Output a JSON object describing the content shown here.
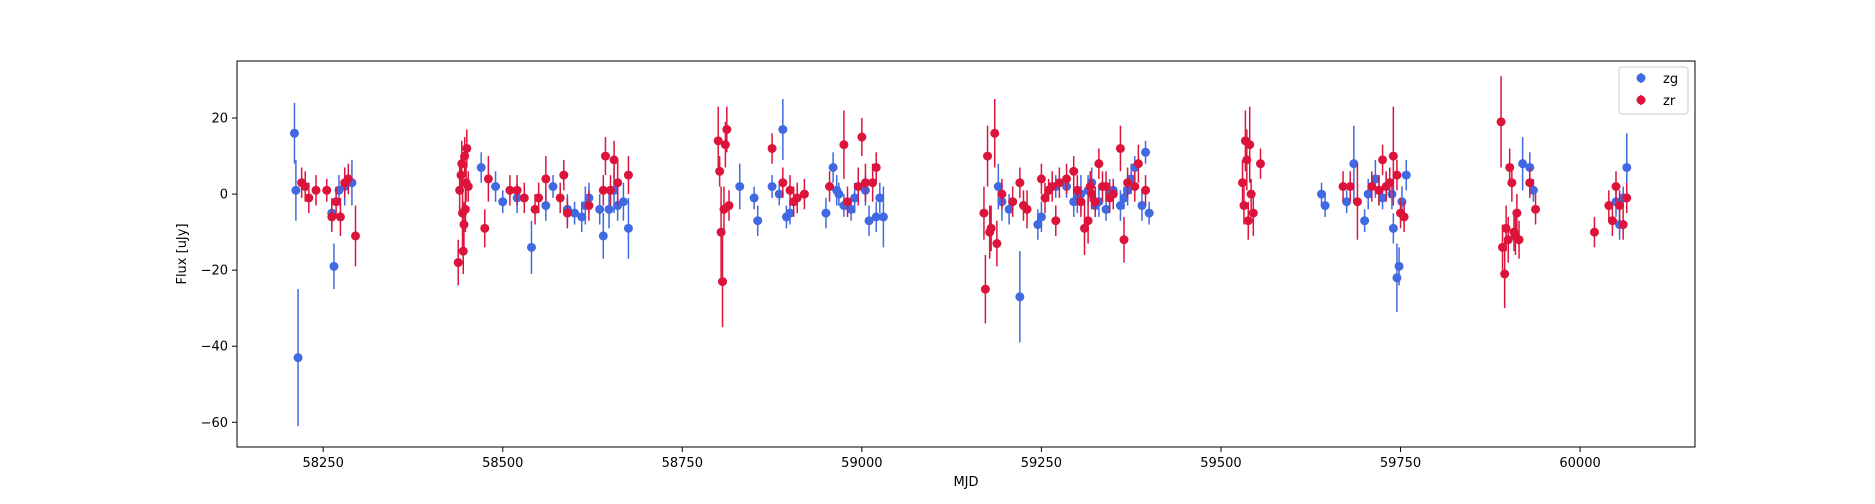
{
  "chart_data": {
    "type": "scatter",
    "title": "",
    "xlabel": "MJD",
    "ylabel": "Flux [uJy]",
    "xlim": [
      58130,
      60160
    ],
    "ylim": [
      -66.5,
      35
    ],
    "xticks": [
      58250,
      58500,
      58750,
      59000,
      59250,
      59500,
      59750,
      60000
    ],
    "yticks": [
      -60,
      -40,
      -20,
      0,
      20
    ],
    "grid": false,
    "legend_position": "top-right",
    "series": [
      {
        "name": "zg",
        "color": "#4169e1",
        "points": [
          [
            58210,
            16,
            8
          ],
          [
            58212,
            1,
            8
          ],
          [
            58215,
            -43,
            18
          ],
          [
            58262,
            -5,
            4
          ],
          [
            58265,
            -19,
            6
          ],
          [
            58272,
            1,
            4
          ],
          [
            58280,
            2,
            5
          ],
          [
            58290,
            3,
            6
          ],
          [
            58470,
            7,
            4
          ],
          [
            58490,
            2,
            4
          ],
          [
            58500,
            -2,
            3
          ],
          [
            58520,
            -1,
            4
          ],
          [
            58540,
            -14,
            7
          ],
          [
            58560,
            -3,
            4
          ],
          [
            58570,
            2,
            3
          ],
          [
            58590,
            -4,
            4
          ],
          [
            58600,
            -5,
            3
          ],
          [
            58610,
            -6,
            4
          ],
          [
            58615,
            -3,
            5
          ],
          [
            58620,
            -1,
            4
          ],
          [
            58635,
            -4,
            4
          ],
          [
            58640,
            -11,
            6
          ],
          [
            58648,
            -4,
            5
          ],
          [
            58655,
            1,
            6
          ],
          [
            58660,
            -3,
            4
          ],
          [
            58668,
            -2,
            5
          ],
          [
            58675,
            -9,
            8
          ],
          [
            58830,
            2,
            6
          ],
          [
            58850,
            -1,
            3
          ],
          [
            58855,
            -7,
            4
          ],
          [
            58875,
            2,
            3
          ],
          [
            58885,
            0,
            3
          ],
          [
            58890,
            17,
            8
          ],
          [
            58895,
            -6,
            3
          ],
          [
            58900,
            -5,
            3
          ],
          [
            58950,
            -5,
            4
          ],
          [
            58960,
            7,
            4
          ],
          [
            58965,
            1,
            4
          ],
          [
            58968,
            0,
            3
          ],
          [
            58975,
            -3,
            3
          ],
          [
            58985,
            -4,
            3
          ],
          [
            58990,
            -1,
            4
          ],
          [
            59005,
            1,
            4
          ],
          [
            59010,
            -7,
            4
          ],
          [
            59020,
            -6,
            4
          ],
          [
            59025,
            -1,
            4
          ],
          [
            59030,
            -6,
            8
          ],
          [
            59190,
            2,
            6
          ],
          [
            59195,
            -2,
            5
          ],
          [
            59205,
            -4,
            4
          ],
          [
            59220,
            -27,
            12
          ],
          [
            59245,
            -8,
            4
          ],
          [
            59250,
            -6,
            4
          ],
          [
            59270,
            2,
            3
          ],
          [
            59285,
            2,
            3
          ],
          [
            59295,
            -2,
            4
          ],
          [
            59300,
            -1,
            4
          ],
          [
            59305,
            0,
            5
          ],
          [
            59315,
            1,
            4
          ],
          [
            59320,
            3,
            4
          ],
          [
            59325,
            -3,
            3
          ],
          [
            59330,
            -2,
            4
          ],
          [
            59340,
            -4,
            3
          ],
          [
            59345,
            0,
            4
          ],
          [
            59350,
            1,
            3
          ],
          [
            59360,
            -3,
            4
          ],
          [
            59365,
            -1,
            3
          ],
          [
            59370,
            1,
            4
          ],
          [
            59375,
            4,
            4
          ],
          [
            59380,
            7,
            3
          ],
          [
            59390,
            -3,
            4
          ],
          [
            59395,
            11,
            3
          ],
          [
            59400,
            -5,
            3
          ],
          [
            59640,
            0,
            3
          ],
          [
            59645,
            -3,
            3
          ],
          [
            59675,
            -2,
            3
          ],
          [
            59685,
            8,
            10
          ],
          [
            59700,
            -7,
            3
          ],
          [
            59705,
            0,
            4
          ],
          [
            59715,
            4,
            5
          ],
          [
            59720,
            1,
            4
          ],
          [
            59725,
            -1,
            3
          ],
          [
            59730,
            2,
            3
          ],
          [
            59735,
            3,
            4
          ],
          [
            59738,
            0,
            4
          ],
          [
            59740,
            -9,
            4
          ],
          [
            59745,
            -22,
            9
          ],
          [
            59748,
            -19,
            5
          ],
          [
            59752,
            -2,
            4
          ],
          [
            59758,
            5,
            4
          ],
          [
            59920,
            8,
            7
          ],
          [
            59930,
            7,
            4
          ],
          [
            59935,
            1,
            3
          ],
          [
            60050,
            -2,
            4
          ],
          [
            60055,
            -8,
            4
          ],
          [
            60060,
            -1,
            3
          ],
          [
            60065,
            7,
            9
          ]
        ]
      },
      {
        "name": "zr",
        "color": "#dc143c",
        "points": [
          [
            58220,
            3,
            4
          ],
          [
            58225,
            2,
            4
          ],
          [
            58230,
            -1,
            4
          ],
          [
            58240,
            1,
            4
          ],
          [
            58255,
            1,
            3
          ],
          [
            58262,
            -6,
            4
          ],
          [
            58268,
            -2,
            4
          ],
          [
            58274,
            -6,
            5
          ],
          [
            58280,
            3,
            4
          ],
          [
            58285,
            4,
            4
          ],
          [
            58295,
            -11,
            8
          ],
          [
            58438,
            -18,
            6
          ],
          [
            58440,
            1,
            6
          ],
          [
            58442,
            5,
            5
          ],
          [
            58443,
            8,
            6
          ],
          [
            58444,
            -5,
            9
          ],
          [
            58445,
            -15,
            6
          ],
          [
            58446,
            -8,
            6
          ],
          [
            58447,
            10,
            5
          ],
          [
            58448,
            -4,
            6
          ],
          [
            58449,
            3,
            5
          ],
          [
            58450,
            12,
            5
          ],
          [
            58452,
            2,
            4
          ],
          [
            58475,
            -9,
            5
          ],
          [
            58480,
            4,
            6
          ],
          [
            58510,
            1,
            4
          ],
          [
            58520,
            1,
            4
          ],
          [
            58530,
            -1,
            4
          ],
          [
            58545,
            -4,
            4
          ],
          [
            58550,
            -1,
            4
          ],
          [
            58560,
            4,
            6
          ],
          [
            58580,
            -1,
            4
          ],
          [
            58585,
            5,
            4
          ],
          [
            58590,
            -5,
            4
          ],
          [
            58620,
            -3,
            4
          ],
          [
            58640,
            1,
            4
          ],
          [
            58643,
            10,
            5
          ],
          [
            58650,
            1,
            4
          ],
          [
            58655,
            9,
            5
          ],
          [
            58660,
            3,
            6
          ],
          [
            58675,
            5,
            5
          ],
          [
            58800,
            14,
            9
          ],
          [
            58802,
            6,
            4
          ],
          [
            58804,
            -10,
            12
          ],
          [
            58806,
            -23,
            12
          ],
          [
            58808,
            -4,
            6
          ],
          [
            58810,
            13,
            6
          ],
          [
            58812,
            17,
            6
          ],
          [
            58815,
            -3,
            4
          ],
          [
            58875,
            12,
            4
          ],
          [
            58890,
            3,
            4
          ],
          [
            58900,
            1,
            4
          ],
          [
            58905,
            -2,
            4
          ],
          [
            58910,
            -1,
            4
          ],
          [
            58920,
            0,
            4
          ],
          [
            58955,
            2,
            4
          ],
          [
            58975,
            13,
            9
          ],
          [
            58980,
            -2,
            4
          ],
          [
            58995,
            2,
            5
          ],
          [
            59000,
            15,
            5
          ],
          [
            59005,
            3,
            5
          ],
          [
            59015,
            3,
            5
          ],
          [
            59020,
            7,
            4
          ],
          [
            59170,
            -5,
            7
          ],
          [
            59172,
            -25,
            9
          ],
          [
            59175,
            10,
            8
          ],
          [
            59178,
            -10,
            7
          ],
          [
            59180,
            -9,
            6
          ],
          [
            59185,
            16,
            9
          ],
          [
            59188,
            -13,
            6
          ],
          [
            59195,
            0,
            4
          ],
          [
            59210,
            -2,
            4
          ],
          [
            59220,
            3,
            4
          ],
          [
            59225,
            -3,
            4
          ],
          [
            59230,
            -4,
            5
          ],
          [
            59250,
            4,
            4
          ],
          [
            59255,
            -1,
            4
          ],
          [
            59260,
            1,
            3
          ],
          [
            59265,
            2,
            4
          ],
          [
            59270,
            -7,
            4
          ],
          [
            59275,
            3,
            4
          ],
          [
            59285,
            4,
            4
          ],
          [
            59295,
            6,
            4
          ],
          [
            59300,
            1,
            4
          ],
          [
            59305,
            -2,
            4
          ],
          [
            59310,
            -9,
            7
          ],
          [
            59315,
            -7,
            6
          ],
          [
            59318,
            2,
            4
          ],
          [
            59320,
            0,
            4
          ],
          [
            59325,
            -2,
            4
          ],
          [
            59330,
            8,
            4
          ],
          [
            59335,
            2,
            4
          ],
          [
            59340,
            2,
            4
          ],
          [
            59345,
            -1,
            4
          ],
          [
            59350,
            0,
            4
          ],
          [
            59360,
            12,
            6
          ],
          [
            59365,
            -12,
            6
          ],
          [
            59370,
            3,
            4
          ],
          [
            59380,
            2,
            4
          ],
          [
            59385,
            8,
            5
          ],
          [
            59395,
            1,
            4
          ],
          [
            59530,
            3,
            6
          ],
          [
            59532,
            -3,
            5
          ],
          [
            59534,
            14,
            8
          ],
          [
            59536,
            9,
            8
          ],
          [
            59538,
            -7,
            5
          ],
          [
            59540,
            13,
            10
          ],
          [
            59542,
            0,
            4
          ],
          [
            59545,
            -5,
            6
          ],
          [
            59555,
            8,
            4
          ],
          [
            59670,
            2,
            4
          ],
          [
            59680,
            2,
            4
          ],
          [
            59690,
            -2,
            10
          ],
          [
            59710,
            2,
            4
          ],
          [
            59720,
            1,
            4
          ],
          [
            59725,
            9,
            4
          ],
          [
            59730,
            2,
            4
          ],
          [
            59735,
            3,
            4
          ],
          [
            59740,
            10,
            13
          ],
          [
            59745,
            5,
            4
          ],
          [
            59750,
            -5,
            4
          ],
          [
            59755,
            -6,
            4
          ],
          [
            59890,
            19,
            12
          ],
          [
            59892,
            -14,
            6
          ],
          [
            59895,
            -21,
            9
          ],
          [
            59897,
            -9,
            6
          ],
          [
            59900,
            -12,
            6
          ],
          [
            59902,
            7,
            5
          ],
          [
            59905,
            3,
            5
          ],
          [
            59908,
            -10,
            5
          ],
          [
            59910,
            -11,
            5
          ],
          [
            59912,
            -5,
            5
          ],
          [
            59915,
            -12,
            5
          ],
          [
            59930,
            3,
            4
          ],
          [
            59938,
            -4,
            4
          ],
          [
            60020,
            -10,
            4
          ],
          [
            60040,
            -3,
            4
          ],
          [
            60045,
            -7,
            4
          ],
          [
            60050,
            2,
            4
          ],
          [
            60055,
            -3,
            4
          ],
          [
            60060,
            -8,
            4
          ],
          [
            60065,
            -1,
            4
          ]
        ]
      }
    ]
  }
}
